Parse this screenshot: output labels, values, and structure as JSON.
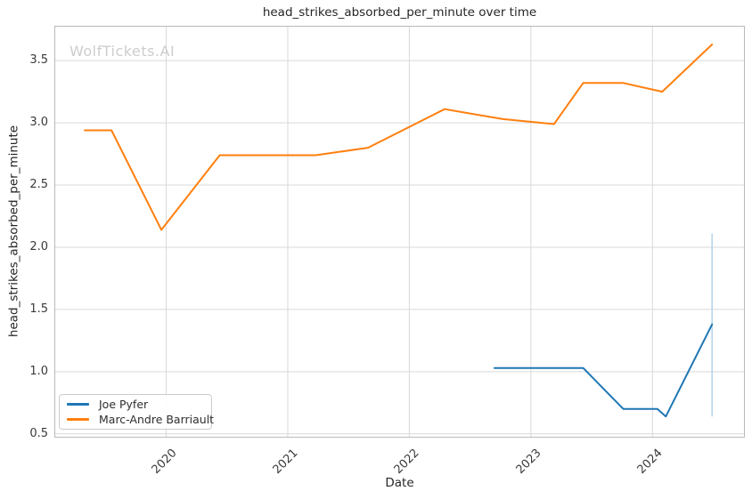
{
  "title": "head_strikes_absorbed_per_minute over time",
  "watermark": "WolfTickets.AI",
  "axes": {
    "xlabel": "Date",
    "ylabel": "head_strikes_absorbed_per_minute"
  },
  "legend": {
    "items": [
      {
        "label": "Joe Pyfer",
        "color": "#1f77b4"
      },
      {
        "label": "Marc-Andre Barriault",
        "color": "#ff7f0e"
      }
    ]
  },
  "chart_data": {
    "type": "line",
    "title": "head_strikes_absorbed_per_minute over time",
    "xlabel": "Date",
    "ylabel": "head_strikes_absorbed_per_minute",
    "x_ticks": [
      2020,
      2021,
      2022,
      2023,
      2024
    ],
    "x_tick_labels": [
      "2020",
      "2021",
      "2022",
      "2023",
      "2024"
    ],
    "y_ticks": [
      0.5,
      1.0,
      1.5,
      2.0,
      2.5,
      3.0,
      3.5
    ],
    "xlim": [
      2019.08,
      2024.76
    ],
    "ylim": [
      0.47,
      3.78
    ],
    "grid": true,
    "legend_position": "lower-left",
    "series": [
      {
        "name": "Joe Pyfer",
        "color": "#1f77b4",
        "x": [
          2022.7,
          2023.43,
          2023.76,
          2024.04,
          2024.11,
          2024.49
        ],
        "y": [
          1.03,
          1.03,
          0.7,
          0.7,
          0.64,
          1.38
        ]
      },
      {
        "name": "Marc-Andre Barriault",
        "color": "#ff7f0e",
        "x": [
          2019.33,
          2019.55,
          2019.96,
          2020.44,
          2021.23,
          2021.66,
          2022.29,
          2022.77,
          2023.19,
          2023.43,
          2023.76,
          2024.08,
          2024.49
        ],
        "y": [
          2.94,
          2.94,
          2.14,
          2.74,
          2.74,
          2.8,
          3.11,
          3.03,
          2.99,
          3.32,
          3.32,
          3.25,
          3.63
        ]
      }
    ],
    "error_bars": [
      {
        "series": "Joe Pyfer",
        "x": 2024.49,
        "y_low": 0.64,
        "y_high": 2.11,
        "color": "#b4d5ea"
      }
    ]
  },
  "colors": {
    "background": "#ffffff",
    "grid": "#d9d9d9",
    "spine": "#b9b9b9",
    "title_text": "#262626",
    "tick_text": "#3a3a3a",
    "watermark": "#cdcdcd"
  }
}
